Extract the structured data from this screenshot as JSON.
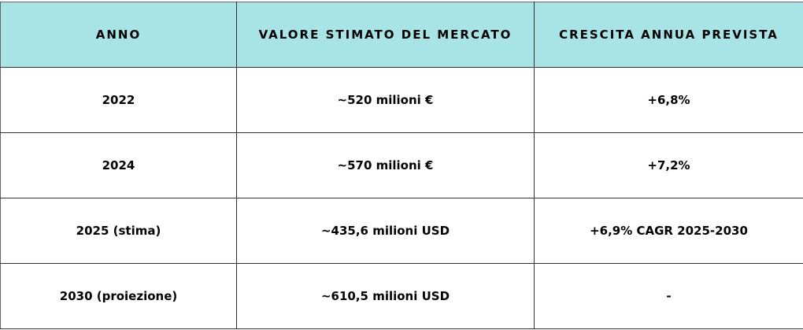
{
  "colors": {
    "header_bg": "#a8e4e6"
  },
  "headers": [
    "ANNO",
    "VALORE STIMATO DEL MERCATO",
    "CRESCITA ANNUA PREVISTA"
  ],
  "rows": [
    [
      "2022",
      "~520 milioni €",
      "+6,8%"
    ],
    [
      "2024",
      "~570 milioni €",
      "+7,2%"
    ],
    [
      "2025 (stima)",
      "~435,6 milioni USD",
      "+6,9% CAGR 2025-2030"
    ],
    [
      "2030 (proiezione)",
      "~610,5 milioni USD",
      "-"
    ]
  ]
}
